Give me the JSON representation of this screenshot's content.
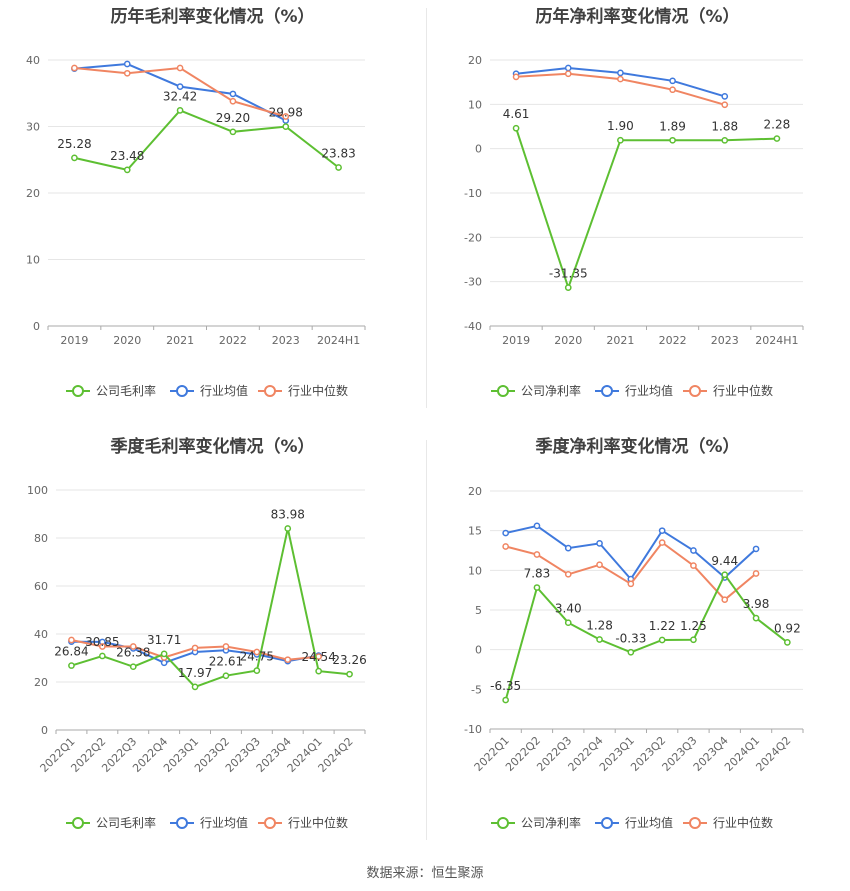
{
  "source_label": "数据来源：恒生聚源",
  "legend": {
    "gross_company": "公司毛利率",
    "net_company": "公司净利率",
    "industry_avg": "行业均值",
    "industry_median": "行业中位数"
  },
  "colors": {
    "company": "#5dbf32",
    "avg": "#3f79dd",
    "median": "#f08562",
    "grid": "#e6e6e6",
    "axis": "#aaaaaa"
  },
  "chart_data": [
    {
      "type": "line",
      "title": "历年毛利率变化情况（%）",
      "categories": [
        "2019",
        "2020",
        "2021",
        "2022",
        "2023",
        "2024H1"
      ],
      "ylim": [
        0,
        40
      ],
      "yticks": [
        0,
        10,
        20,
        30,
        40
      ],
      "grid": true,
      "legend_position": "bottom",
      "series": [
        {
          "name": "公司毛利率",
          "values": [
            25.28,
            23.48,
            32.42,
            29.2,
            29.98,
            23.83
          ],
          "labels": [
            "25.28",
            "23.48",
            "32.42",
            "29.20",
            "29.98",
            "23.83"
          ]
        },
        {
          "name": "行业均值",
          "values": [
            38.7,
            39.4,
            36.0,
            34.9,
            30.9,
            null
          ]
        },
        {
          "name": "行业中位数",
          "values": [
            38.8,
            38.0,
            38.8,
            33.8,
            31.5,
            null
          ]
        }
      ]
    },
    {
      "type": "line",
      "title": "历年净利率变化情况（%）",
      "categories": [
        "2019",
        "2020",
        "2021",
        "2022",
        "2023",
        "2024H1"
      ],
      "ylim": [
        -40,
        20
      ],
      "yticks": [
        -40,
        -30,
        -20,
        -10,
        0,
        10,
        20
      ],
      "grid": true,
      "legend_position": "bottom",
      "series": [
        {
          "name": "公司净利率",
          "values": [
            4.61,
            -31.35,
            1.9,
            1.89,
            1.88,
            2.28
          ],
          "labels": [
            "4.61",
            "-31.35",
            "1.90",
            "1.89",
            "1.88",
            "2.28"
          ]
        },
        {
          "name": "行业均值",
          "values": [
            16.9,
            18.2,
            17.1,
            15.3,
            11.8,
            null
          ]
        },
        {
          "name": "行业中位数",
          "values": [
            16.2,
            16.9,
            15.7,
            13.3,
            9.9,
            null
          ]
        }
      ]
    },
    {
      "type": "line",
      "title": "季度毛利率变化情况（%）",
      "categories": [
        "2022Q1",
        "2022Q2",
        "2022Q3",
        "2022Q4",
        "2023Q1",
        "2023Q2",
        "2023Q3",
        "2023Q4",
        "2024Q1",
        "2024Q2"
      ],
      "ylim": [
        0,
        100
      ],
      "yticks": [
        0,
        20,
        40,
        60,
        80,
        100
      ],
      "grid": true,
      "legend_position": "bottom",
      "series": [
        {
          "name": "公司毛利率",
          "values": [
            26.84,
            30.85,
            26.38,
            31.71,
            17.97,
            22.61,
            24.75,
            83.98,
            24.54,
            23.26
          ],
          "labels": [
            "26.84",
            "30.85",
            "26.38",
            "31.71",
            "17.97",
            "22.61",
            "24.75",
            "83.98",
            "24.54",
            "23.26"
          ]
        },
        {
          "name": "行业均值",
          "values": [
            36.8,
            36.7,
            34.0,
            28.0,
            32.5,
            33.2,
            31.5,
            28.7,
            31.0,
            null
          ]
        },
        {
          "name": "行业中位数",
          "values": [
            37.5,
            34.8,
            34.8,
            30.2,
            34.2,
            34.8,
            32.5,
            29.3,
            30.6,
            null
          ]
        }
      ]
    },
    {
      "type": "line",
      "title": "季度净利率变化情况（%）",
      "categories": [
        "2022Q1",
        "2022Q2",
        "2022Q3",
        "2022Q4",
        "2023Q1",
        "2023Q2",
        "2023Q3",
        "2023Q4",
        "2024Q1",
        "2024Q2"
      ],
      "ylim": [
        -10,
        20
      ],
      "yticks": [
        -10,
        -5,
        0,
        5,
        10,
        15,
        20
      ],
      "grid": true,
      "legend_position": "bottom",
      "series": [
        {
          "name": "公司净利率",
          "values": [
            -6.35,
            7.83,
            3.4,
            1.28,
            -0.33,
            1.22,
            1.25,
            9.44,
            3.98,
            0.92
          ],
          "labels": [
            "-6.35",
            "7.83",
            "3.40",
            "1.28",
            "-0.33",
            "1.22",
            "1.25",
            "9.44",
            "3.98",
            "0.92"
          ]
        },
        {
          "name": "行业均值",
          "values": [
            14.7,
            15.6,
            12.8,
            13.4,
            8.9,
            15.0,
            12.5,
            9.1,
            12.7,
            null
          ]
        },
        {
          "name": "行业中位数",
          "values": [
            13.0,
            12.0,
            9.5,
            10.7,
            8.3,
            13.5,
            10.6,
            6.3,
            9.6,
            null
          ]
        }
      ]
    }
  ]
}
